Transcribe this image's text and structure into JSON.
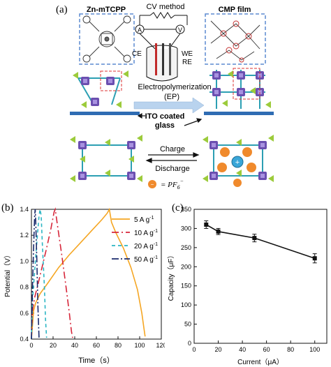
{
  "panel_a": {
    "label": "(a)",
    "monomer_label": "Zn-mTCPP",
    "method_label": "CV method",
    "film_label": "CMP film",
    "electrodes": {
      "ce": "CE",
      "we": "WE",
      "re": "RE",
      "ammeter": "A",
      "voltmeter": "V"
    },
    "process_label": "Electropolymerization",
    "process_abbr": "(EP)",
    "substrate_line1": "ITO coated",
    "substrate_line2": "glass",
    "charge_label": "Charge",
    "discharge_label": "Discharge",
    "ion_legend": "= PF",
    "ion_sub": "6",
    "ion_sup": "−",
    "colors": {
      "porphyrin": "#6b4fb0",
      "linker": "#2c9fb3",
      "carbazole": "#9ccb3b",
      "ion": "#f08a2c",
      "cation": "#3aa6d8",
      "arrow": "#b9d3ee",
      "glass": "#2f6cb3"
    }
  },
  "chart_data": [
    {
      "panel": "(b)",
      "type": "line",
      "xlabel": "Time（s）",
      "ylabel": "Potential（V）",
      "xlim": [
        0,
        120
      ],
      "ylim": [
        0.4,
        1.4
      ],
      "xticks": [
        "0",
        "20",
        "40",
        "60",
        "80",
        "100",
        "120"
      ],
      "yticks": [
        "0.4",
        "0.6",
        "0.8",
        "1.0",
        "1.2",
        "1.4"
      ],
      "legend_position": "top-right",
      "series": [
        {
          "name": "5 A g",
          "sup": "-1",
          "color": "#f5a623",
          "dash": "solid",
          "x": [
            0,
            2,
            4,
            8,
            15,
            25,
            35,
            45,
            55,
            65,
            70,
            72,
            74,
            78,
            85,
            92,
            98,
            102,
            104,
            105
          ],
          "y": [
            0.4,
            0.62,
            0.68,
            0.75,
            0.83,
            0.95,
            1.05,
            1.14,
            1.23,
            1.32,
            1.37,
            1.4,
            1.3,
            1.22,
            1.1,
            0.95,
            0.78,
            0.6,
            0.48,
            0.42
          ]
        },
        {
          "name": "10 A g",
          "sup": "-1",
          "color": "#d6263a",
          "dash": "10,4,2,4",
          "x": [
            0,
            1,
            3,
            6,
            10,
            14,
            18,
            21,
            22,
            24,
            28,
            32,
            35,
            37,
            38
          ],
          "y": [
            0.4,
            0.62,
            0.72,
            0.82,
            0.96,
            1.1,
            1.25,
            1.38,
            1.4,
            1.28,
            1.05,
            0.8,
            0.6,
            0.46,
            0.41
          ]
        },
        {
          "name": "20 A g",
          "sup": "-1",
          "color": "#2bb5c4",
          "dash": "5,4",
          "x": [
            0,
            1,
            3,
            5,
            7,
            8,
            9,
            10,
            12,
            13,
            14
          ],
          "y": [
            0.4,
            0.7,
            0.92,
            1.15,
            1.35,
            1.4,
            1.35,
            1.15,
            0.8,
            0.55,
            0.41
          ]
        },
        {
          "name": "50 A g",
          "sup": "-1",
          "color": "#1a2a6c",
          "dash": "10,3,2,3",
          "x": [
            0,
            1,
            2,
            3,
            3.5,
            4,
            5,
            6,
            7
          ],
          "y": [
            0.4,
            0.8,
            1.1,
            1.35,
            1.4,
            1.3,
            1.0,
            0.65,
            0.41
          ]
        }
      ]
    },
    {
      "panel": "(c)",
      "type": "line",
      "xlabel": "Current（μA）",
      "ylabel": "Capacity（μF）",
      "xlim": [
        0,
        110
      ],
      "ylim": [
        0,
        350
      ],
      "xticks": [
        "0",
        "20",
        "40",
        "60",
        "80",
        "100"
      ],
      "yticks": [
        "0",
        "50",
        "100",
        "150",
        "200",
        "250",
        "300",
        "350"
      ],
      "series": [
        {
          "name": "",
          "color": "#111111",
          "marker": "square",
          "x": [
            10,
            20,
            50,
            100
          ],
          "y": [
            310,
            292,
            275,
            222
          ],
          "err": [
            10,
            8,
            10,
            12
          ]
        }
      ]
    }
  ]
}
